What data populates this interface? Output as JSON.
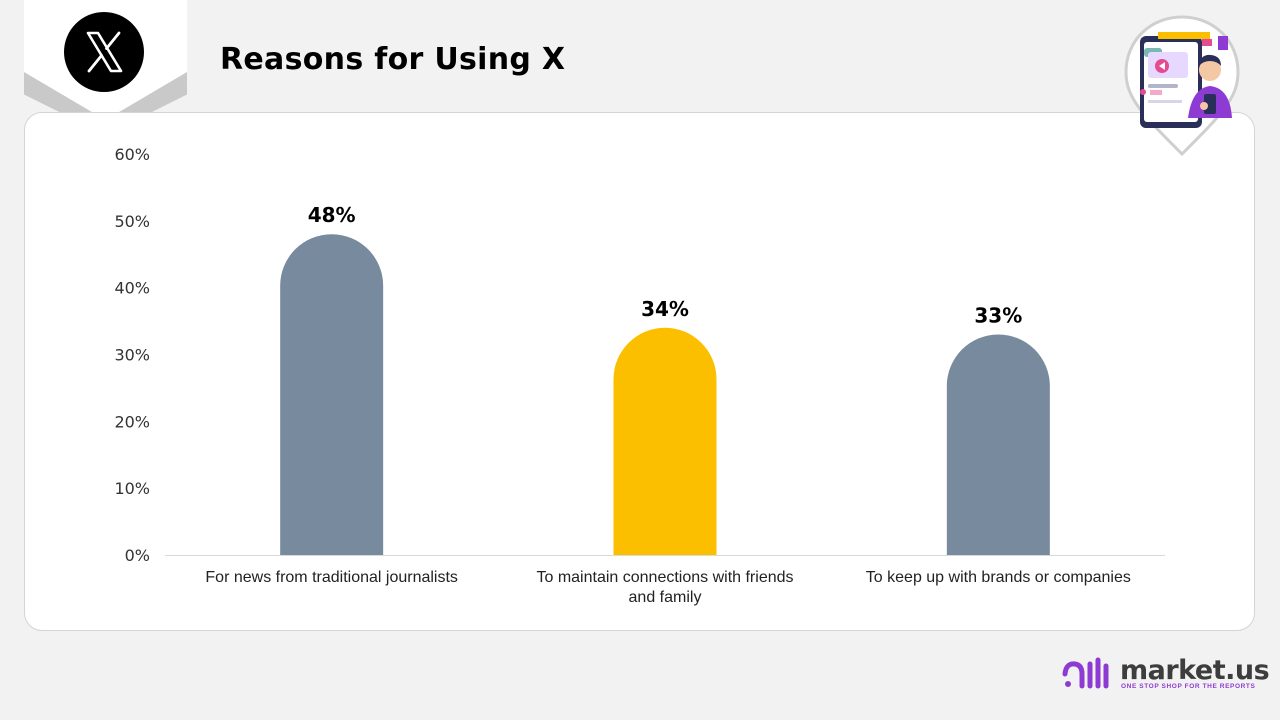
{
  "page": {
    "title": "Reasons for Using X",
    "logo_alt": "X logo"
  },
  "branding": {
    "name": "market.us",
    "tagline": "ONE STOP SHOP FOR THE REPORTS",
    "accent": "#8e3bd3"
  },
  "chart_data": {
    "type": "bar",
    "title": "Reasons for Using X",
    "xlabel": "",
    "ylabel": "",
    "categories": [
      "For news from traditional journalists",
      "To maintain connections with friends and family",
      "To keep up with brands or companies"
    ],
    "values": [
      48,
      34,
      33
    ],
    "value_labels": [
      "48%",
      "34%",
      "33%"
    ],
    "colors": [
      "#778a9e",
      "#fcbf00",
      "#778a9e"
    ],
    "ylim": [
      0,
      60
    ],
    "yticks": [
      "0%",
      "10%",
      "20%",
      "30%",
      "40%",
      "50%",
      "60%"
    ],
    "grid": false,
    "legend": "none"
  }
}
